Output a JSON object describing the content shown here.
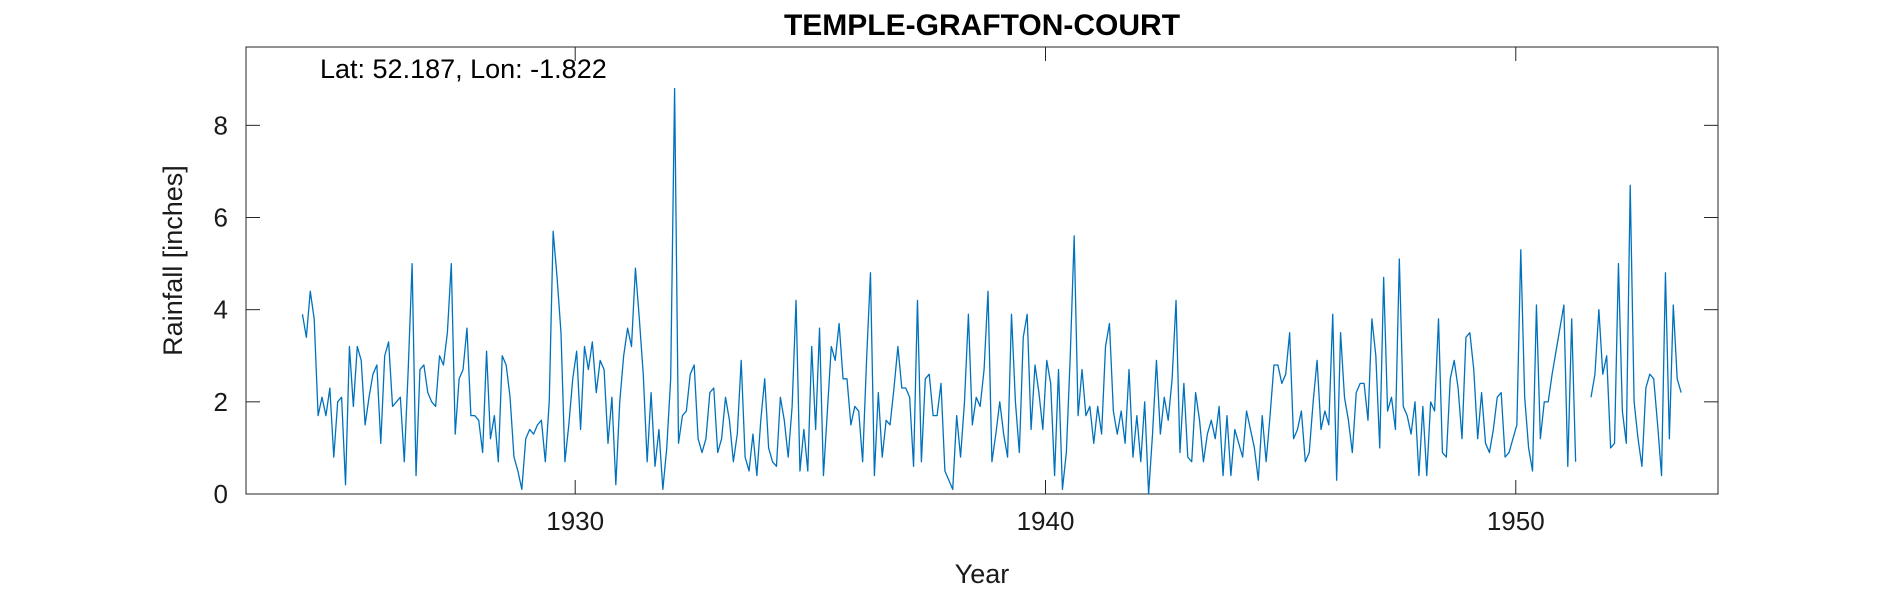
{
  "chart_data": {
    "type": "line",
    "title": "TEMPLE-GRAFTON-COURT",
    "annotation": "Lat: 52.187, Lon: -1.822",
    "xlabel": "Year",
    "ylabel": "Rainfall [inches]",
    "xlim": [
      1923,
      1954.3
    ],
    "ylim": [
      0,
      9.7
    ],
    "xticks": [
      1930,
      1940,
      1950
    ],
    "xtick_labels": [
      "1930",
      "1940",
      "1950"
    ],
    "yticks": [
      0,
      2,
      4,
      6,
      8
    ],
    "ytick_labels": [
      "0",
      "2",
      "4",
      "6",
      "8"
    ],
    "grid": false,
    "line_color": "#0072BD",
    "series": [
      {
        "x_start": 1924.2,
        "x_step": 0.0833,
        "values": [
          3.9,
          3.4,
          4.4,
          3.8,
          1.7,
          2.1,
          1.7,
          2.3,
          0.8,
          2.0,
          2.1,
          0.2,
          3.2,
          1.9,
          3.2,
          2.9,
          1.5,
          2.1,
          2.6,
          2.8,
          1.1,
          3.0,
          3.3,
          1.9,
          2.0,
          2.1,
          0.7,
          2.7,
          5.0,
          0.4,
          2.7,
          2.8,
          2.2,
          2.0,
          1.9,
          3.0,
          2.8,
          3.5,
          5.0,
          1.3,
          2.5,
          2.7,
          3.6,
          1.7,
          1.7,
          1.6,
          0.9,
          3.1,
          1.2,
          1.7,
          0.7,
          3.0,
          2.8,
          2.1,
          0.8,
          0.5,
          0.1,
          1.2,
          1.4,
          1.3,
          1.5,
          1.6,
          0.7,
          2.0,
          5.7,
          4.7,
          3.5,
          0.7,
          1.5,
          2.5,
          3.1,
          1.4,
          3.2,
          2.7,
          3.3,
          2.2,
          2.9,
          2.7,
          1.1,
          2.1,
          0.2,
          2.0,
          3.0,
          3.6,
          3.2,
          4.9,
          3.8,
          2.6,
          0.7,
          2.2,
          0.6,
          1.4,
          0.1,
          1.0,
          2.5,
          8.8,
          1.1,
          1.7,
          1.8,
          2.6,
          2.8,
          1.2,
          0.9,
          1.2,
          2.2,
          2.3,
          0.9,
          1.2,
          2.1,
          1.6,
          0.7,
          1.3,
          2.9,
          0.8,
          0.5,
          1.3,
          0.4,
          1.6,
          2.5,
          1.0,
          0.7,
          0.6,
          2.1,
          1.6,
          0.8,
          1.9,
          4.2,
          0.5,
          1.4,
          0.5,
          3.2,
          1.4,
          3.6,
          0.4,
          1.8,
          3.2,
          2.9,
          3.7,
          2.5,
          2.5,
          1.5,
          1.9,
          1.8,
          0.7,
          2.9,
          4.8,
          0.4,
          2.2,
          0.8,
          1.6,
          1.5,
          2.3,
          3.2,
          2.3,
          2.3,
          2.1,
          0.6,
          4.2,
          0.7,
          2.5,
          2.6,
          1.7,
          1.7,
          2.4,
          0.5,
          0.3,
          0.1,
          1.7,
          0.8,
          2.0,
          3.9,
          1.5,
          2.1,
          1.9,
          2.7,
          4.4,
          0.7,
          1.3,
          2.0,
          1.3,
          0.8,
          3.9,
          2.0,
          0.9,
          3.4,
          3.9,
          1.4,
          2.8,
          2.2,
          1.4,
          2.9,
          2.4,
          0.4,
          2.7,
          0.1,
          0.9,
          3.0,
          5.6,
          1.7,
          2.7,
          1.7,
          1.9,
          1.1,
          1.9,
          1.3,
          3.2,
          3.7,
          1.8,
          1.3,
          1.8,
          1.1,
          2.7,
          0.8,
          1.7,
          0.7,
          2.0,
          0.0,
          1.3,
          2.9,
          1.3,
          2.1,
          1.6,
          2.5,
          4.2,
          0.9,
          2.4,
          0.8,
          0.7,
          2.2,
          1.6,
          0.7,
          1.3,
          1.6,
          1.2,
          1.9,
          0.4,
          1.7,
          0.4,
          1.4,
          1.1,
          0.8,
          1.8,
          1.4,
          1.0,
          0.3,
          1.7,
          0.7,
          1.7,
          2.8,
          2.8,
          2.4,
          2.6,
          3.5,
          1.2,
          1.4,
          1.8,
          0.7,
          0.9,
          2.0,
          2.9,
          1.4,
          1.8,
          1.5,
          3.9,
          0.3,
          3.5,
          2.1,
          1.6,
          0.9,
          2.2,
          2.4,
          2.4,
          1.6,
          3.8,
          3.0,
          1.0,
          4.7,
          1.8,
          2.1,
          1.4,
          5.1,
          1.9,
          1.7,
          1.3,
          2.0,
          0.4,
          1.9,
          0.4,
          2.0,
          1.8,
          3.8,
          0.9,
          0.8,
          2.5,
          2.9,
          2.3,
          1.2,
          3.4,
          3.5,
          2.7,
          1.2,
          2.2,
          1.1,
          0.9,
          1.4,
          2.1,
          2.2,
          0.8,
          0.9,
          1.2,
          1.5,
          5.3,
          2.1,
          1.0,
          0.5,
          4.1,
          1.2,
          2.0,
          2.0,
          2.6,
          3.1,
          3.6,
          4.1,
          0.6,
          3.8,
          0.7
        ]
      },
      {
        "x_start": 1951.6,
        "x_step": 0.0833,
        "values": [
          2.1,
          2.6,
          4.0,
          2.6,
          3.0,
          1.0,
          1.1,
          5.0,
          1.8,
          1.1,
          6.7,
          2.0,
          1.2,
          0.6,
          2.3,
          2.6,
          2.5,
          1.5,
          0.4,
          4.8,
          1.2,
          4.1,
          2.5,
          2.2
        ]
      }
    ]
  }
}
